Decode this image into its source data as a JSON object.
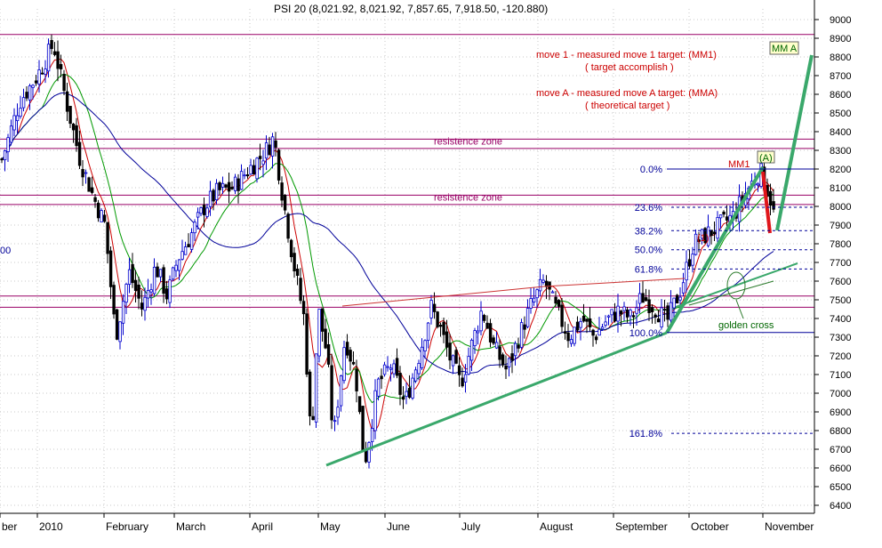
{
  "chart_data": {
    "type": "candlestick",
    "title": "PSI 20 (8,021.92, 8,021.92, 7,857.65, 7,918.50, -120.880)",
    "grid": true,
    "y_axis": {
      "side": "right",
      "ylim": [
        6300,
        9100
      ],
      "ticks": [
        6400,
        6500,
        6600,
        6700,
        6800,
        6900,
        7000,
        7100,
        7200,
        7300,
        7400,
        7500,
        7600,
        7700,
        7800,
        7900,
        8000,
        8100,
        8200,
        8300,
        8400,
        8500,
        8600,
        8700,
        8800,
        8900,
        9000
      ]
    },
    "x_axis": {
      "labels": [
        "ber",
        "2010",
        "February",
        "March",
        "April",
        "May",
        "June",
        "July",
        "August",
        "September",
        "October",
        "November"
      ]
    },
    "left_edge_label": "00",
    "moving_averages": [
      {
        "name": "short MA",
        "color": "#cc0000"
      },
      {
        "name": "medium MA",
        "color": "#009900"
      },
      {
        "name": "long MA",
        "color": "#000099"
      }
    ],
    "horizontal_levels": [
      {
        "price": 8920,
        "label": ""
      },
      {
        "price": 8360,
        "label": "resistence zone"
      },
      {
        "price": 8310,
        "label": ""
      },
      {
        "price": 8060,
        "label": "resistence zone"
      },
      {
        "price": 8010,
        "label": ""
      },
      {
        "price": 7520,
        "label": ""
      },
      {
        "price": 7460,
        "label": ""
      }
    ],
    "fibonacci": [
      {
        "label": "0.0%",
        "price": 8200
      },
      {
        "label": "23.6%",
        "price": 7995
      },
      {
        "label": "38.2%",
        "price": 7870
      },
      {
        "label": "50.0%",
        "price": 7768
      },
      {
        "label": "61.8%",
        "price": 7665
      },
      {
        "label": "100.0%",
        "price": 7325
      },
      {
        "label": "161.8%",
        "price": 6785
      }
    ],
    "annotations": [
      {
        "text": "move 1 - measured move 1 target: (MM1)",
        "color": "#cc0000"
      },
      {
        "text": "( target accomplish )",
        "color": "#cc0000"
      },
      {
        "text": "move A - measured move A target: (MMA)",
        "color": "#cc0000"
      },
      {
        "text": "( theoretical target )",
        "color": "#cc0000"
      },
      {
        "text": "MM1",
        "color": "#cc0000"
      },
      {
        "text": "(A)",
        "color": "#006600"
      },
      {
        "text": "(1)",
        "color": "#cc0000"
      },
      {
        "text": "MM A",
        "color": "#006600"
      },
      {
        "text": "golden cross",
        "color": "#006600"
      }
    ],
    "last_close": 7918.5,
    "approx_path": [
      [
        "Dec 2009",
        8250
      ],
      [
        "early Jan",
        8870
      ],
      [
        "mid Jan",
        8200
      ],
      [
        "late Jan",
        7950
      ],
      [
        "early Feb",
        7300
      ],
      [
        "mid Feb",
        7700
      ],
      [
        "late Feb",
        7500
      ],
      [
        "early Mar",
        7750
      ],
      [
        "mid Mar",
        8000
      ],
      [
        "late Mar",
        8150
      ],
      [
        "early Apr",
        8370
      ],
      [
        "mid Apr",
        8000
      ],
      [
        "late Apr",
        7700
      ],
      [
        "early May",
        6700
      ],
      [
        "mid May",
        7300
      ],
      [
        "late May",
        6600
      ],
      [
        "early Jun",
        7050
      ],
      [
        "mid Jun",
        7100
      ],
      [
        "late Jun",
        6950
      ],
      [
        "early Jul",
        7450
      ],
      [
        "mid Jul",
        7050
      ],
      [
        "late Jul",
        7350
      ],
      [
        "early Aug",
        7600
      ],
      [
        "mid Aug",
        7350
      ],
      [
        "late Aug",
        7350
      ],
      [
        "early Sep",
        7500
      ],
      [
        "mid Sep",
        7400
      ],
      [
        "late Sep",
        7500
      ],
      [
        "early Oct",
        7800
      ],
      [
        "mid Oct",
        7950
      ],
      [
        "late Oct",
        8200
      ],
      [
        "early Nov",
        7918
      ]
    ]
  }
}
